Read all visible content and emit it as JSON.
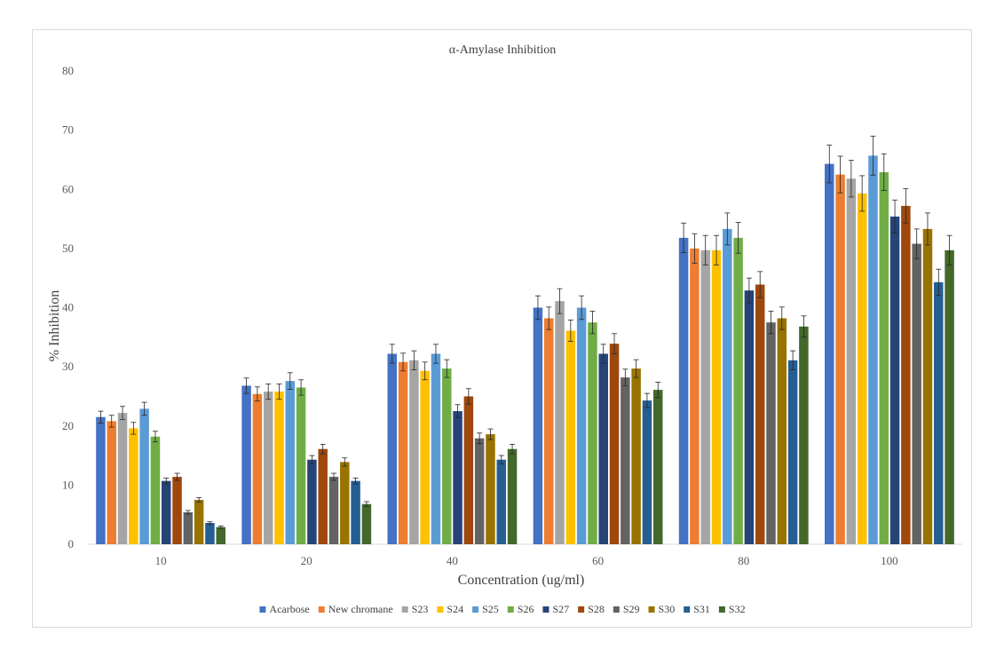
{
  "chart_data": {
    "type": "bar",
    "title": "α-Amylase Inhibition",
    "xlabel": "Concentration (ug/ml)",
    "ylabel": "% Inhibition",
    "ylim": [
      0,
      80
    ],
    "yticks": [
      0,
      10,
      20,
      30,
      40,
      50,
      60,
      70,
      80
    ],
    "grid": false,
    "legend": "bottom",
    "error_bars": true,
    "categories": [
      "10",
      "20",
      "40",
      "60",
      "80",
      "100"
    ],
    "series": [
      {
        "name": "Acarbose",
        "color": "#4472c4",
        "values": [
          21.5,
          26.8,
          32.2,
          40.0,
          51.8,
          64.3
        ],
        "errors": [
          1.0,
          1.3,
          1.6,
          2.0,
          2.5,
          3.2
        ]
      },
      {
        "name": "New chromane",
        "color": "#ed7d31",
        "values": [
          20.8,
          25.4,
          30.8,
          38.2,
          50.0,
          62.5
        ],
        "errors": [
          1.0,
          1.2,
          1.5,
          1.9,
          2.5,
          3.1
        ]
      },
      {
        "name": "S23",
        "color": "#a5a5a5",
        "values": [
          22.2,
          25.8,
          31.1,
          41.1,
          49.7,
          61.8
        ],
        "errors": [
          1.1,
          1.3,
          1.6,
          2.1,
          2.5,
          3.1
        ]
      },
      {
        "name": "S24",
        "color": "#ffc000",
        "values": [
          19.6,
          25.8,
          29.3,
          36.1,
          49.7,
          59.3
        ],
        "errors": [
          1.0,
          1.3,
          1.5,
          1.8,
          2.5,
          3.0
        ]
      },
      {
        "name": "S25",
        "color": "#5b9bd5",
        "values": [
          22.9,
          27.6,
          32.2,
          40.0,
          53.3,
          65.7
        ],
        "errors": [
          1.1,
          1.4,
          1.6,
          2.0,
          2.7,
          3.3
        ]
      },
      {
        "name": "S26",
        "color": "#70ad47",
        "values": [
          18.2,
          26.5,
          29.7,
          37.5,
          51.8,
          62.9
        ],
        "errors": [
          0.9,
          1.3,
          1.5,
          1.9,
          2.6,
          3.1
        ]
      },
      {
        "name": "S27",
        "color": "#264478",
        "values": [
          10.7,
          14.3,
          22.5,
          32.2,
          42.9,
          55.4
        ],
        "errors": [
          0.5,
          0.7,
          1.1,
          1.6,
          2.1,
          2.8
        ]
      },
      {
        "name": "S28",
        "color": "#9e480e",
        "values": [
          11.4,
          16.1,
          25.0,
          33.9,
          43.9,
          57.2
        ],
        "errors": [
          0.6,
          0.8,
          1.3,
          1.7,
          2.2,
          2.9
        ]
      },
      {
        "name": "S29",
        "color": "#636363",
        "values": [
          5.4,
          11.4,
          17.9,
          28.2,
          37.5,
          50.8
        ],
        "errors": [
          0.3,
          0.6,
          0.9,
          1.4,
          1.9,
          2.5
        ]
      },
      {
        "name": "S30",
        "color": "#997300",
        "values": [
          7.5,
          13.9,
          18.6,
          29.7,
          38.2,
          53.3
        ],
        "errors": [
          0.4,
          0.7,
          0.9,
          1.5,
          1.9,
          2.7
        ]
      },
      {
        "name": "S31",
        "color": "#255e91",
        "values": [
          3.6,
          10.7,
          14.3,
          24.3,
          31.1,
          44.3
        ],
        "errors": [
          0.2,
          0.5,
          0.7,
          1.2,
          1.6,
          2.2
        ]
      },
      {
        "name": "S32",
        "color": "#43682b",
        "values": [
          2.9,
          6.8,
          16.1,
          26.1,
          36.8,
          49.7
        ],
        "errors": [
          0.2,
          0.4,
          0.8,
          1.3,
          1.8,
          2.5
        ]
      }
    ]
  }
}
